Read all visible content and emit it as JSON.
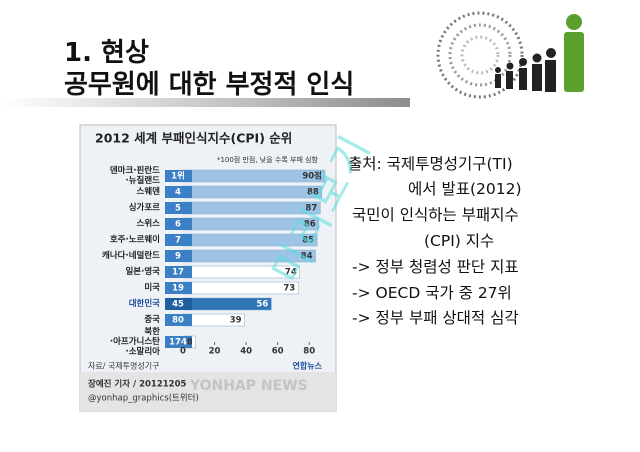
{
  "slide": {
    "title": [
      "1. 현상",
      "공무원에 대한 부정적 인식"
    ],
    "body": [
      "출처: 국제투명성기구(TI)",
      "에서 발표(2012)",
      "국민이 인식하는 부패지수",
      "(CPI) 지수",
      "-> 정부 청렴성 판단 지표",
      "-> OECD 국가 중  27위",
      "->  정부 부패 상대적 심각"
    ],
    "watermark": "미리보기"
  },
  "chart_data": {
    "type": "bar",
    "orientation": "horizontal",
    "title": "2012 세계 부패인식지수(CPI) 순위",
    "subtitle": "*100점 만점, 낮을 수록 부패 심함",
    "categories": [
      "덴마크·핀란드\n·뉴질랜드",
      "스웨덴",
      "싱가포르",
      "스위스",
      "호주·노르웨이",
      "캐나다·네덜란드",
      "일본·영국",
      "미국",
      "대한민국",
      "중국",
      "북한\n·아프가니스탄\n·소말리아"
    ],
    "values": [
      90,
      88,
      87,
      86,
      85,
      84,
      74,
      73,
      56,
      39,
      8
    ],
    "value_labels": [
      "90점",
      "88",
      "87",
      "86",
      "85",
      "84",
      "74",
      "73",
      "56",
      "39",
      "8"
    ],
    "ranks": [
      1,
      4,
      5,
      6,
      7,
      9,
      17,
      19,
      45,
      80,
      174
    ],
    "rank_labels": [
      "1위",
      "4",
      "5",
      "6",
      "7",
      "9",
      "17",
      "19",
      "45",
      "80",
      "174"
    ],
    "colors": [
      "#9dc3e6",
      "#9dc3e6",
      "#9dc3e6",
      "#9dc3e6",
      "#9dc3e6",
      "#9dc3e6",
      "#ffffff",
      "#ffffff",
      "#2e75b6",
      "#ffffff",
      "#ffffff"
    ],
    "rank_color": "#3b7fc4",
    "xlim": [
      0,
      90
    ],
    "xticks": [
      0,
      20,
      40,
      60,
      80
    ],
    "source": "자료/ 국제투명성기구",
    "publisher": "연합뉴스",
    "author": "장예진 기자 / 20121205",
    "twitter": "@yonhap_graphics(트위터)",
    "watermark": "YONHAP NEWS"
  }
}
